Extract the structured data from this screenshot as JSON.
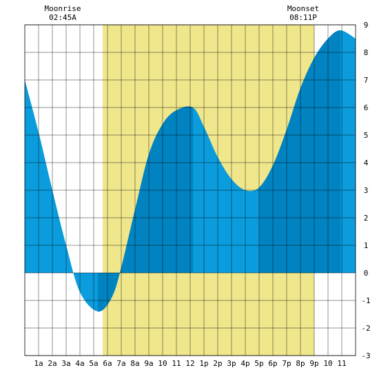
{
  "chart_data": {
    "type": "area",
    "title": "",
    "xlabel": "",
    "ylabel": "",
    "xlim": [
      0,
      24
    ],
    "ylim": [
      -3,
      9
    ],
    "grid": true,
    "x_ticks": [
      {
        "x": 1,
        "label": "1a"
      },
      {
        "x": 2,
        "label": "2a"
      },
      {
        "x": 3,
        "label": "3a"
      },
      {
        "x": 4,
        "label": "4a"
      },
      {
        "x": 5,
        "label": "5a"
      },
      {
        "x": 6,
        "label": "6a"
      },
      {
        "x": 7,
        "label": "7a"
      },
      {
        "x": 8,
        "label": "8a"
      },
      {
        "x": 9,
        "label": "9a"
      },
      {
        "x": 10,
        "label": "10"
      },
      {
        "x": 11,
        "label": "11"
      },
      {
        "x": 12,
        "label": "12"
      },
      {
        "x": 13,
        "label": "1p"
      },
      {
        "x": 14,
        "label": "2p"
      },
      {
        "x": 15,
        "label": "3p"
      },
      {
        "x": 16,
        "label": "4p"
      },
      {
        "x": 17,
        "label": "5p"
      },
      {
        "x": 18,
        "label": "6p"
      },
      {
        "x": 19,
        "label": "7p"
      },
      {
        "x": 20,
        "label": "8p"
      },
      {
        "x": 21,
        "label": "9p"
      },
      {
        "x": 22,
        "label": "10"
      },
      {
        "x": 23,
        "label": "11"
      }
    ],
    "y_ticks": [
      -3,
      -2,
      -1,
      0,
      1,
      2,
      3,
      4,
      5,
      6,
      7,
      8,
      9
    ],
    "daylight": {
      "start": 5.65,
      "end": 21.0,
      "color": "#f0e68c"
    },
    "series": [
      {
        "x": [
          0,
          1,
          2,
          3,
          4,
          5.3,
          6.3,
          7,
          8,
          9,
          10,
          11,
          12.2,
          13,
          14,
          15,
          16,
          17,
          18,
          19,
          20,
          21,
          22,
          22.9,
          24
        ],
        "y": [
          7.0,
          5.1,
          3.0,
          1.0,
          -0.7,
          -1.4,
          -0.9,
          0.2,
          2.3,
          4.3,
          5.4,
          5.9,
          6.0,
          5.3,
          4.2,
          3.4,
          3.0,
          3.1,
          3.9,
          5.2,
          6.7,
          7.8,
          8.5,
          8.8,
          8.5
        ]
      }
    ],
    "tide_fill_light": "#0a9cdc",
    "tide_fill_dark": "#0083c0",
    "shade_bands": [
      [
        5.3,
        7.0
      ],
      [
        7.0,
        12.2
      ],
      [
        17.0,
        22.9
      ]
    ],
    "annotations": [
      {
        "type": "moonrise",
        "label": "Moonrise",
        "time": "02:45A",
        "x": 2.75
      },
      {
        "type": "moonset",
        "label": "Moonset",
        "time": "08:11P",
        "x": 20.2
      }
    ]
  }
}
